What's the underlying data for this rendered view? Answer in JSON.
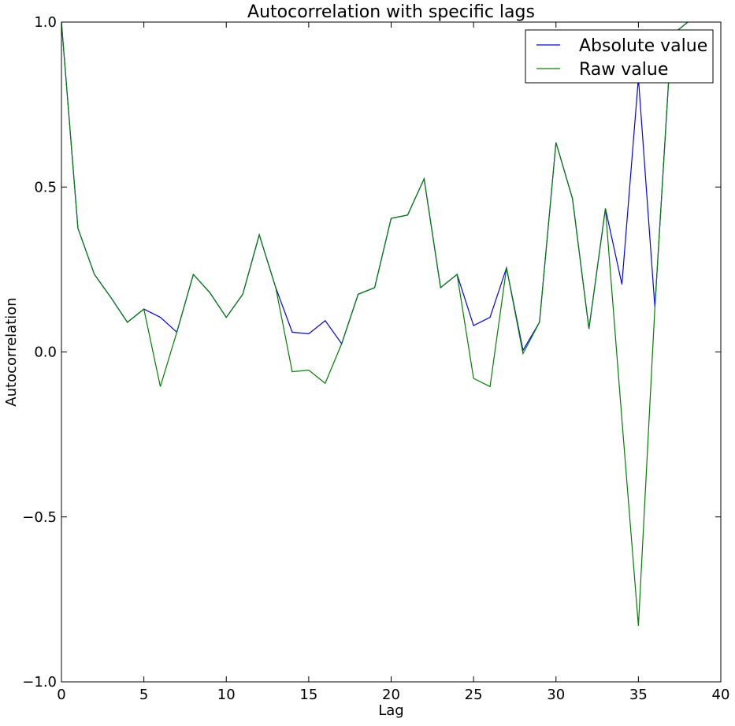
{
  "chart_data": {
    "type": "line",
    "title": "Autocorrelation with specific lags",
    "xlabel": "Lag",
    "ylabel": "Autocorrelation",
    "xlim": [
      0,
      40
    ],
    "ylim": [
      -1.0,
      1.0
    ],
    "xticks": [
      0,
      5,
      10,
      15,
      20,
      25,
      30,
      35,
      40
    ],
    "xtick_labels": [
      "0",
      "5",
      "10",
      "15",
      "20",
      "25",
      "30",
      "35",
      "40"
    ],
    "yticks": [
      -1.0,
      -0.5,
      0.0,
      0.5,
      1.0
    ],
    "ytick_labels": [
      "−1.0",
      "−0.5",
      "0.0",
      "0.5",
      "1.0"
    ],
    "grid": false,
    "legend_position": "top-right",
    "x": [
      0,
      1,
      2,
      3,
      4,
      5,
      6,
      7,
      8,
      9,
      10,
      11,
      12,
      13,
      14,
      15,
      16,
      17,
      18,
      19,
      20,
      21,
      22,
      23,
      24,
      25,
      26,
      27,
      28,
      29,
      30,
      31,
      32,
      33,
      34,
      35,
      36,
      37,
      38
    ],
    "series": [
      {
        "name": "Absolute value",
        "color": "#0000ff",
        "values": [
          1.0,
          0.375,
          0.235,
          0.165,
          0.09,
          0.13,
          0.105,
          0.06,
          0.235,
          0.18,
          0.105,
          0.175,
          0.355,
          0.195,
          0.06,
          0.055,
          0.095,
          0.025,
          0.175,
          0.195,
          0.405,
          0.415,
          0.525,
          0.195,
          0.235,
          0.08,
          0.105,
          0.255,
          0.005,
          0.09,
          0.635,
          0.465,
          0.07,
          0.435,
          0.205,
          0.83,
          0.135,
          0.96,
          1.0
        ]
      },
      {
        "name": "Raw value",
        "color": "#008000",
        "values": [
          1.0,
          0.375,
          0.235,
          0.165,
          0.09,
          0.13,
          -0.105,
          0.06,
          0.235,
          0.18,
          0.105,
          0.175,
          0.355,
          0.195,
          -0.06,
          -0.055,
          -0.095,
          0.025,
          0.175,
          0.195,
          0.405,
          0.415,
          0.525,
          0.195,
          0.235,
          -0.08,
          -0.105,
          0.255,
          -0.005,
          0.09,
          0.635,
          0.465,
          0.07,
          0.435,
          -0.205,
          -0.83,
          0.135,
          0.96,
          1.0
        ]
      }
    ]
  }
}
